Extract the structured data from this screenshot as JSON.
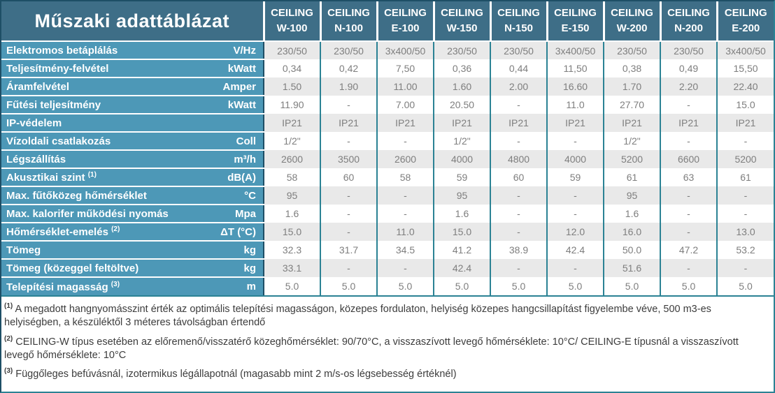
{
  "colors": {
    "header_bg": "#3e6e87",
    "label_bg": "#4d98b7",
    "row_alt_bg": "#e9e9e9",
    "row_bg": "#ffffff",
    "grid_teal": "#2b8294",
    "dark_border": "#1e4f66",
    "value_text": "#7e7e7e",
    "header_text": "#ffffff",
    "footnote_text": "#3c3c3c"
  },
  "table": {
    "title": "Műszaki adattáblázat",
    "columns": [
      {
        "brand": "CEILING",
        "model": "W-100"
      },
      {
        "brand": "CEILING",
        "model": "N-100"
      },
      {
        "brand": "CEILING",
        "model": "E-100"
      },
      {
        "brand": "CEILING",
        "model": "W-150"
      },
      {
        "brand": "CEILING",
        "model": "N-150"
      },
      {
        "brand": "CEILING",
        "model": "E-150"
      },
      {
        "brand": "CEILING",
        "model": "W-200"
      },
      {
        "brand": "CEILING",
        "model": "N-200"
      },
      {
        "brand": "CEILING",
        "model": "E-200"
      }
    ],
    "rows": [
      {
        "label": "Elektromos betáplálás",
        "sup": "",
        "unit": "V/Hz",
        "values": [
          "230/50",
          "230/50",
          "3x400/50",
          "230/50",
          "230/50",
          "3x400/50",
          "230/50",
          "230/50",
          "3x400/50"
        ]
      },
      {
        "label": "Teljesítmény-felvétel",
        "sup": "",
        "unit": "kWatt",
        "values": [
          "0,34",
          "0,42",
          "7,50",
          "0,36",
          "0,44",
          "11,50",
          "0,38",
          "0,49",
          "15,50"
        ]
      },
      {
        "label": "Áramfelvétel",
        "sup": "",
        "unit": "Amper",
        "values": [
          "1.50",
          "1.90",
          "11.00",
          "1.60",
          "2.00",
          "16.60",
          "1.70",
          "2.20",
          "22.40"
        ]
      },
      {
        "label": "Fűtési teljesítmény",
        "sup": "",
        "unit": "kWatt",
        "values": [
          "11.90",
          "-",
          "7.00",
          "20.50",
          "-",
          "11.0",
          "27.70",
          "-",
          "15.0"
        ]
      },
      {
        "label": "IP-védelem",
        "sup": "",
        "unit": "",
        "values": [
          "IP21",
          "IP21",
          "IP21",
          "IP21",
          "IP21",
          "IP21",
          "IP21",
          "IP21",
          "IP21"
        ]
      },
      {
        "label": "Vízoldali csatlakozás",
        "sup": "",
        "unit": "Coll",
        "values": [
          "1/2\"",
          "-",
          "-",
          "1/2\"",
          "-",
          "-",
          "1/2\"",
          "-",
          "-"
        ]
      },
      {
        "label": "Légszállítás",
        "sup": "",
        "unit": "m³/h",
        "values": [
          "2600",
          "3500",
          "2600",
          "4000",
          "4800",
          "4000",
          "5200",
          "6600",
          "5200"
        ]
      },
      {
        "label": "Akusztikai szint",
        "sup": "(1)",
        "unit": "dB(A)",
        "values": [
          "58",
          "60",
          "58",
          "59",
          "60",
          "59",
          "61",
          "63",
          "61"
        ]
      },
      {
        "label": "Max. fűtőközeg hőmérséklet",
        "sup": "",
        "unit": "°C",
        "values": [
          "95",
          "-",
          "-",
          "95",
          "-",
          "-",
          "95",
          "-",
          "-"
        ]
      },
      {
        "label": "Max. kalorifer működési nyomás",
        "sup": "",
        "unit": "Mpa",
        "values": [
          "1.6",
          "-",
          "-",
          "1.6",
          "-",
          "-",
          "1.6",
          "-",
          "-"
        ]
      },
      {
        "label": "Hőmérséklet-emelés",
        "sup": "(2)",
        "unit": "ΔT (°C)",
        "values": [
          "15.0",
          "-",
          "11.0",
          "15.0",
          "-",
          "12.0",
          "16.0",
          "-",
          "13.0"
        ]
      },
      {
        "label": "Tömeg",
        "sup": "",
        "unit": "kg",
        "values": [
          "32.3",
          "31.7",
          "34.5",
          "41.2",
          "38.9",
          "42.4",
          "50.0",
          "47.2",
          "53.2"
        ]
      },
      {
        "label": "Tömeg (közeggel feltöltve)",
        "sup": "",
        "unit": "kg",
        "values": [
          "33.1",
          "-",
          "-",
          "42.4",
          "-",
          "-",
          "51.6",
          "-",
          "-"
        ]
      },
      {
        "label": "Telepítési magasság",
        "sup": "(3)",
        "unit": "m",
        "values": [
          "5.0",
          "5.0",
          "5.0",
          "5.0",
          "5.0",
          "5.0",
          "5.0",
          "5.0",
          "5.0"
        ]
      }
    ]
  },
  "footnotes": [
    {
      "sup": "(1)",
      "text": "A megadott hangnyomásszint érték az optimális telepítési magasságon, közepes fordulaton, helyiség közepes hangcsillapítást figyelembe véve, 500 m3-es helyiségben, a készüléktől 3 méteres távolságban értendő"
    },
    {
      "sup": "(2)",
      "text": "CEILING-W típus esetében az előremenő/visszatérő közeghőmérséklet: 90/70°C, a visszaszívott levegő hőmérséklete: 10°C/ CEILING-E típusnál a visszaszívott levegő hőmérséklete: 10°C"
    },
    {
      "sup": "(3)",
      "text": "Függőleges befúvásnál, izotermikus légállapotnál (magasabb mint 2 m/s-os légsebesség értéknél)"
    }
  ]
}
